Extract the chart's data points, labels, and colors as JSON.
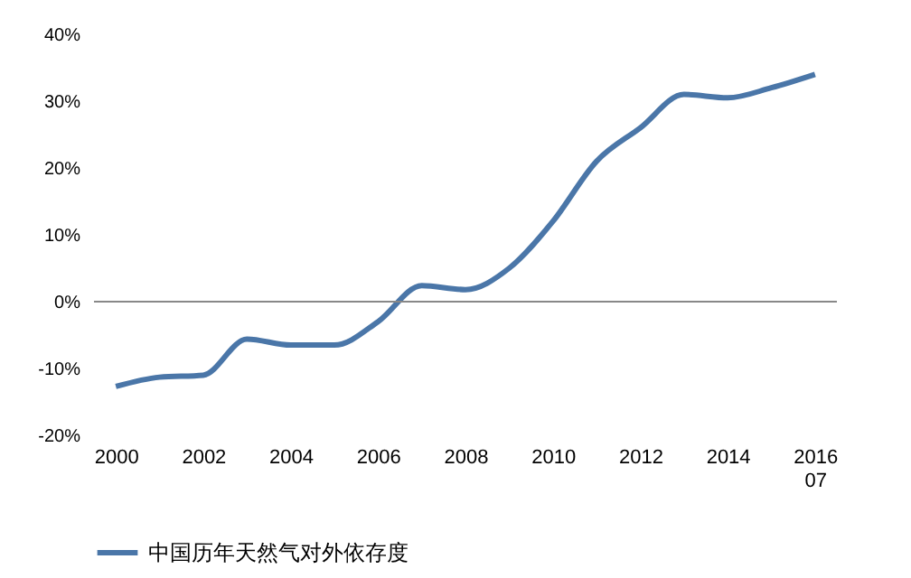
{
  "chart_data": {
    "type": "line",
    "categories": [
      "2000",
      null,
      "2002",
      null,
      "2004",
      null,
      "2006",
      null,
      "2008",
      null,
      "2010",
      null,
      "2012",
      null,
      "2014",
      null,
      "2016\n07"
    ],
    "series": [
      {
        "name": "中国历年天然气对外依存度",
        "color": "#4a76a8",
        "values": [
          -12.7,
          -11.3,
          -11,
          -5.6,
          -6.5,
          -6.5,
          -3,
          2.4,
          1.8,
          5,
          12,
          21,
          26,
          31,
          30.5,
          32,
          34
        ]
      }
    ],
    "ylim": [
      -20,
      40
    ],
    "yticks": [
      {
        "value": -20,
        "label": "-20%"
      },
      {
        "value": -10,
        "label": "-10%"
      },
      {
        "value": 0,
        "label": "0%"
      },
      {
        "value": 10,
        "label": "10%"
      },
      {
        "value": 20,
        "label": "20%"
      },
      {
        "value": 30,
        "label": "30%"
      },
      {
        "value": 40,
        "label": "40%"
      }
    ],
    "ref_lines": [
      {
        "axis": "y",
        "value": 0,
        "color": "#888888"
      }
    ],
    "grid": false,
    "legend": "bottom",
    "marker": "none",
    "line_style": "solid"
  }
}
